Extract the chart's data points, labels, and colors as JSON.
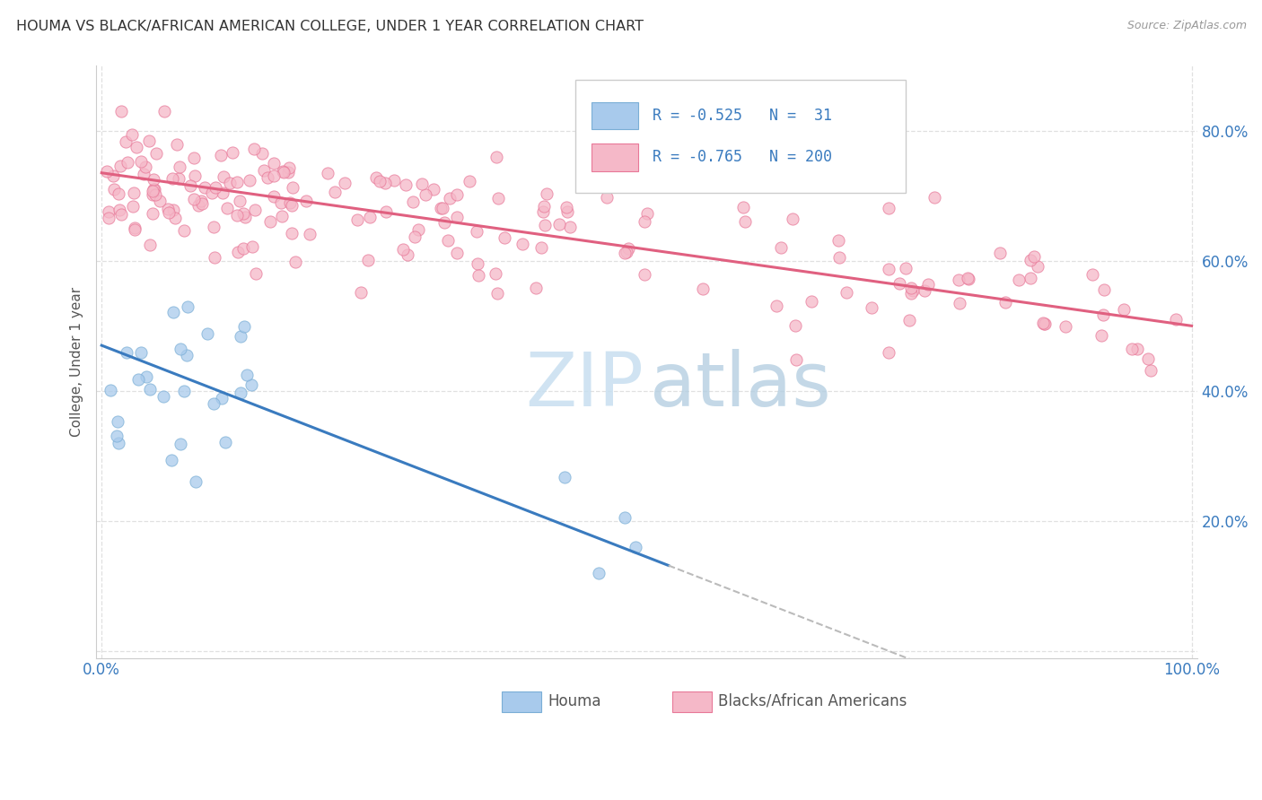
{
  "title": "HOUMA VS BLACK/AFRICAN AMERICAN COLLEGE, UNDER 1 YEAR CORRELATION CHART",
  "source": "Source: ZipAtlas.com",
  "ylabel": "College, Under 1 year",
  "legend_label1": "Houma",
  "legend_label2": "Blacks/African Americans",
  "R1": -0.525,
  "N1": 31,
  "R2": -0.765,
  "N2": 200,
  "color_blue_scatter": "#a8caec",
  "color_blue_edge": "#7aaed6",
  "color_blue_line": "#3a7bbf",
  "color_pink_scatter": "#f5b8c8",
  "color_pink_edge": "#e87898",
  "color_pink_line": "#e06080",
  "color_dashed": "#bbbbbb",
  "title_color": "#333333",
  "source_color": "#999999",
  "tick_color": "#3a7bbf",
  "ylabel_color": "#555555",
  "grid_color": "#dddddd",
  "legend_text_blue": "#3a7bbf",
  "legend_text_pink": "#e06080",
  "bottom_legend_color": "#555555",
  "watermark_zip_color": "#c8dff0",
  "watermark_atlas_color": "#b0cce0"
}
